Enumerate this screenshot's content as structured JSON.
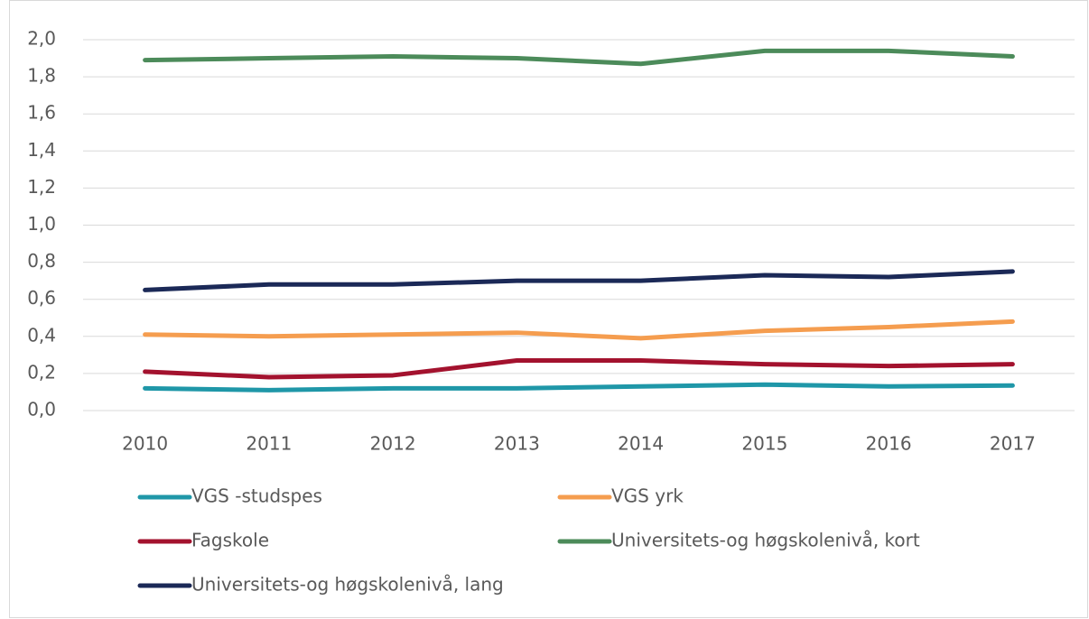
{
  "chart_data": {
    "type": "line",
    "categories": [
      "2010",
      "2011",
      "2012",
      "2013",
      "2014",
      "2015",
      "2016",
      "2017"
    ],
    "series": [
      {
        "name": "VGS -studspes",
        "color": "#1f97a8",
        "values": [
          0.12,
          0.11,
          0.12,
          0.12,
          0.13,
          0.14,
          0.13,
          0.135
        ]
      },
      {
        "name": "VGS yrk",
        "color": "#f59d4f",
        "values": [
          0.41,
          0.4,
          0.41,
          0.42,
          0.39,
          0.43,
          0.45,
          0.48
        ]
      },
      {
        "name": "Fagskole",
        "color": "#a3122e",
        "values": [
          0.21,
          0.18,
          0.19,
          0.27,
          0.27,
          0.25,
          0.24,
          0.25
        ]
      },
      {
        "name": "Universitets-og høgskolenivå, kort",
        "color": "#4c8b5a",
        "values": [
          1.89,
          1.9,
          1.91,
          1.9,
          1.87,
          1.94,
          1.94,
          1.91
        ]
      },
      {
        "name": "Universitets-og høgskolenivå, lang",
        "color": "#1b2957",
        "values": [
          0.65,
          0.68,
          0.68,
          0.7,
          0.7,
          0.73,
          0.72,
          0.75
        ]
      }
    ],
    "ylim": [
      0,
      2
    ],
    "yticks": [
      {
        "value": 0,
        "label": "0,0"
      },
      {
        "value": 0.2,
        "label": "0,2"
      },
      {
        "value": 0.4,
        "label": "0,4"
      },
      {
        "value": 0.6,
        "label": "0,6"
      },
      {
        "value": 0.8,
        "label": "0,8"
      },
      {
        "value": 1.0,
        "label": "1,0"
      },
      {
        "value": 1.2,
        "label": "1,2"
      },
      {
        "value": 1.4,
        "label": "1,4"
      },
      {
        "value": 1.6,
        "label": "1,6"
      },
      {
        "value": 1.8,
        "label": "1,8"
      },
      {
        "value": 2.0,
        "label": "2,0"
      }
    ],
    "grid": true,
    "legend": "bottom"
  }
}
